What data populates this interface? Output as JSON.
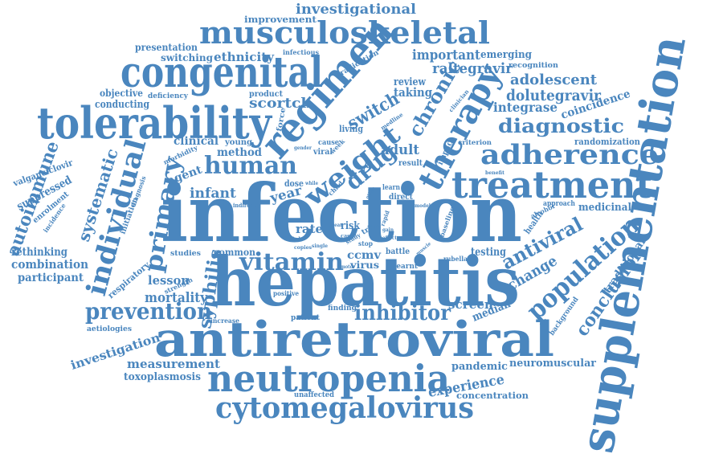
{
  "color": "#4a86be",
  "words": {
    "infection": "infection",
    "hepatitis": "hepatitis",
    "antiretroviral": "antiretroviral",
    "supplementation": "supplementation",
    "neutropenia": "neutropenia",
    "cytomegalovirus": "cytomegalovirus",
    "congenital": "congenital",
    "tolerability": "tolerability",
    "musculoskeletal": "musculoskeletal",
    "regimen": "regimen",
    "treatment": "treatment",
    "adherence": "adherence",
    "therapy": "therapy",
    "individual": "individual",
    "weight": "weight",
    "human": "human",
    "primary": "primary",
    "vitamin": "vitamin",
    "population": "population",
    "prevention": "prevention",
    "inhibitor": "inhibitor",
    "diagnostic": "diagnostic",
    "drug": "drug",
    "chronic": "chronic",
    "autoimmune": "autoimmune",
    "systematic": "systematic",
    "antiviral": "antiviral",
    "conclusion": "conclusion",
    "syphilis": "syphilis",
    "switch": "switch",
    "investigational": "investigational",
    "ethnicity": "ethnicity",
    "raltegravir": "raltegravir",
    "dolutegravir": "dolutegravir",
    "adolescent": "adolescent",
    "scortch": "scortch",
    "adult": "adult",
    "mortality": "mortality",
    "measurement": "measurement",
    "experience": "experience",
    "investigation": "investigation",
    "combination": "combination",
    "change": "change",
    "integrase": "integrase",
    "coincidence": "coincidence",
    "randomization": "randomization",
    "important": "important",
    "emerging": "emerging",
    "presentation": "presentation",
    "switching": "switching",
    "improvement": "improvement",
    "objective": "objective",
    "deficiency": "deficiency",
    "conducting": "conducting",
    "product": "product",
    "taking": "taking",
    "review": "review",
    "eradication": "eradication",
    "recognition": "recognition",
    "infectious": "infectious",
    "clinical": "clinical",
    "method": "method",
    "young": "young",
    "agent": "agent",
    "infant": "infant",
    "year": "year",
    "morbidity": "morbidity",
    "valganciclovir": "valganciclovir",
    "suppressed": "suppressed",
    "enrolment": "enrolment",
    "incidence": "incidence",
    "rethinking": "rethinking",
    "participant": "participant",
    "respiratory": "respiratory",
    "initiation": "initiation",
    "diagnosis": "diagnosis",
    "lesson": "lesson",
    "strength": "strength",
    "aetiologies": "aetiologies",
    "studies": "studies",
    "common": "common",
    "rate": "rate",
    "risk": "risk",
    "ccmv": "ccmv",
    "virus": "virus",
    "positive": "positive",
    "increase": "increase",
    "patient": "patient",
    "finding": "finding",
    "learnt": "learnt",
    "rubella": "rubella",
    "testing": "testing",
    "screen": "screen",
    "median": "median",
    "background": "background",
    "pandemic": "pandemic",
    "neuromuscular": "neuromuscular",
    "concentration": "concentration",
    "toxoplasmosis": "toxoplasmosis",
    "unaffected": "unaffected",
    "medicinal": "medicinal",
    "traditional": "traditional",
    "approach": "approach",
    "health": "health",
    "alcohol": "alcohol",
    "benefit": "benefit",
    "criterion": "criterion",
    "impact": "impact",
    "clinician": "clinician",
    "living": "living",
    "medline": "medline",
    "force": "force",
    "viral": "viral",
    "cause": "cause",
    "gender": "gender",
    "week": "week",
    "result": "result",
    "dose": "dose",
    "child": "child",
    "indirect": "indirect",
    "learn": "learn",
    "direct": "direct",
    "model": "model",
    "baseline": "baseline",
    "rapid": "rapid",
    "gain": "gain",
    "effect": "effect",
    "trial": "trial",
    "stop": "stop",
    "battle": "battle",
    "muscle": "muscle",
    "motor": "motor",
    "think": "think",
    "copies": "copies",
    "single": "single",
    "linear": "linear",
    "case": "case",
    "study": "study",
    "while": "while",
    "other": "other"
  }
}
